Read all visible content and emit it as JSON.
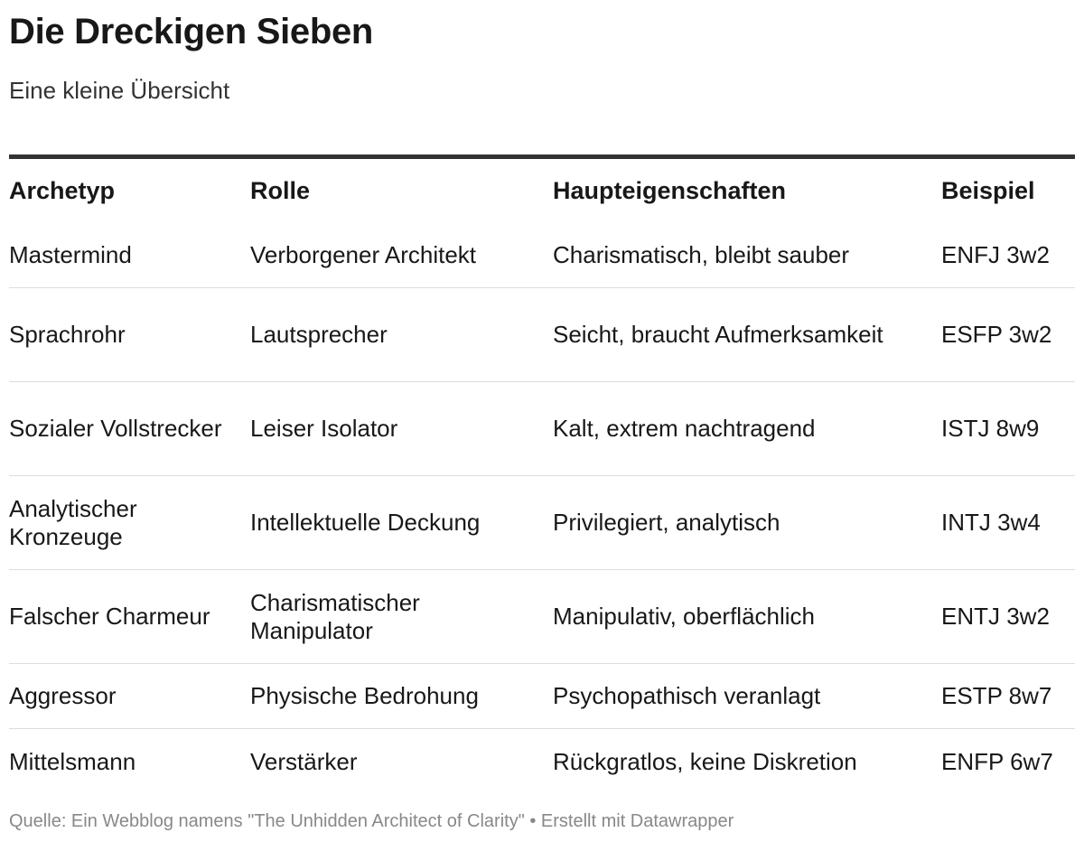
{
  "title": "Die Dreckigen Sieben",
  "subtitle": "Eine kleine Übersicht",
  "table": {
    "headers": [
      "Archetyp",
      "Rolle",
      "Haupteigenschaften",
      "Beispiel"
    ],
    "rows": [
      [
        "Mastermind",
        "Verborgener Architekt",
        "Charismatisch, bleibt sauber",
        "ENFJ 3w2"
      ],
      [
        "Sprachrohr",
        "Lautsprecher",
        "Seicht, braucht Aufmerksamkeit",
        "ESFP 3w2"
      ],
      [
        "Sozialer Vollstrecker",
        "Leiser Isolator",
        "Kalt, extrem nachtragend",
        "ISTJ 8w9"
      ],
      [
        "Analytischer Kronzeuge",
        "Intellektuelle Deckung",
        "Privilegiert, analytisch",
        "INTJ 3w4"
      ],
      [
        "Falscher Charmeur",
        "Charismatischer Manipulator",
        "Manipulativ, oberflächlich",
        "ENTJ 3w2"
      ],
      [
        "Aggressor",
        "Physische Bedrohung",
        "Psychopathisch veranlagt",
        "ESTP 8w7"
      ],
      [
        "Mittelsmann",
        "Verstärker",
        "Rückgratlos, keine Diskretion",
        "ENFP 6w7"
      ]
    ]
  },
  "footer": "Quelle: Ein Webblog namens \"The Unhidden Architect of Clarity\" • Erstellt mit Datawrapper"
}
